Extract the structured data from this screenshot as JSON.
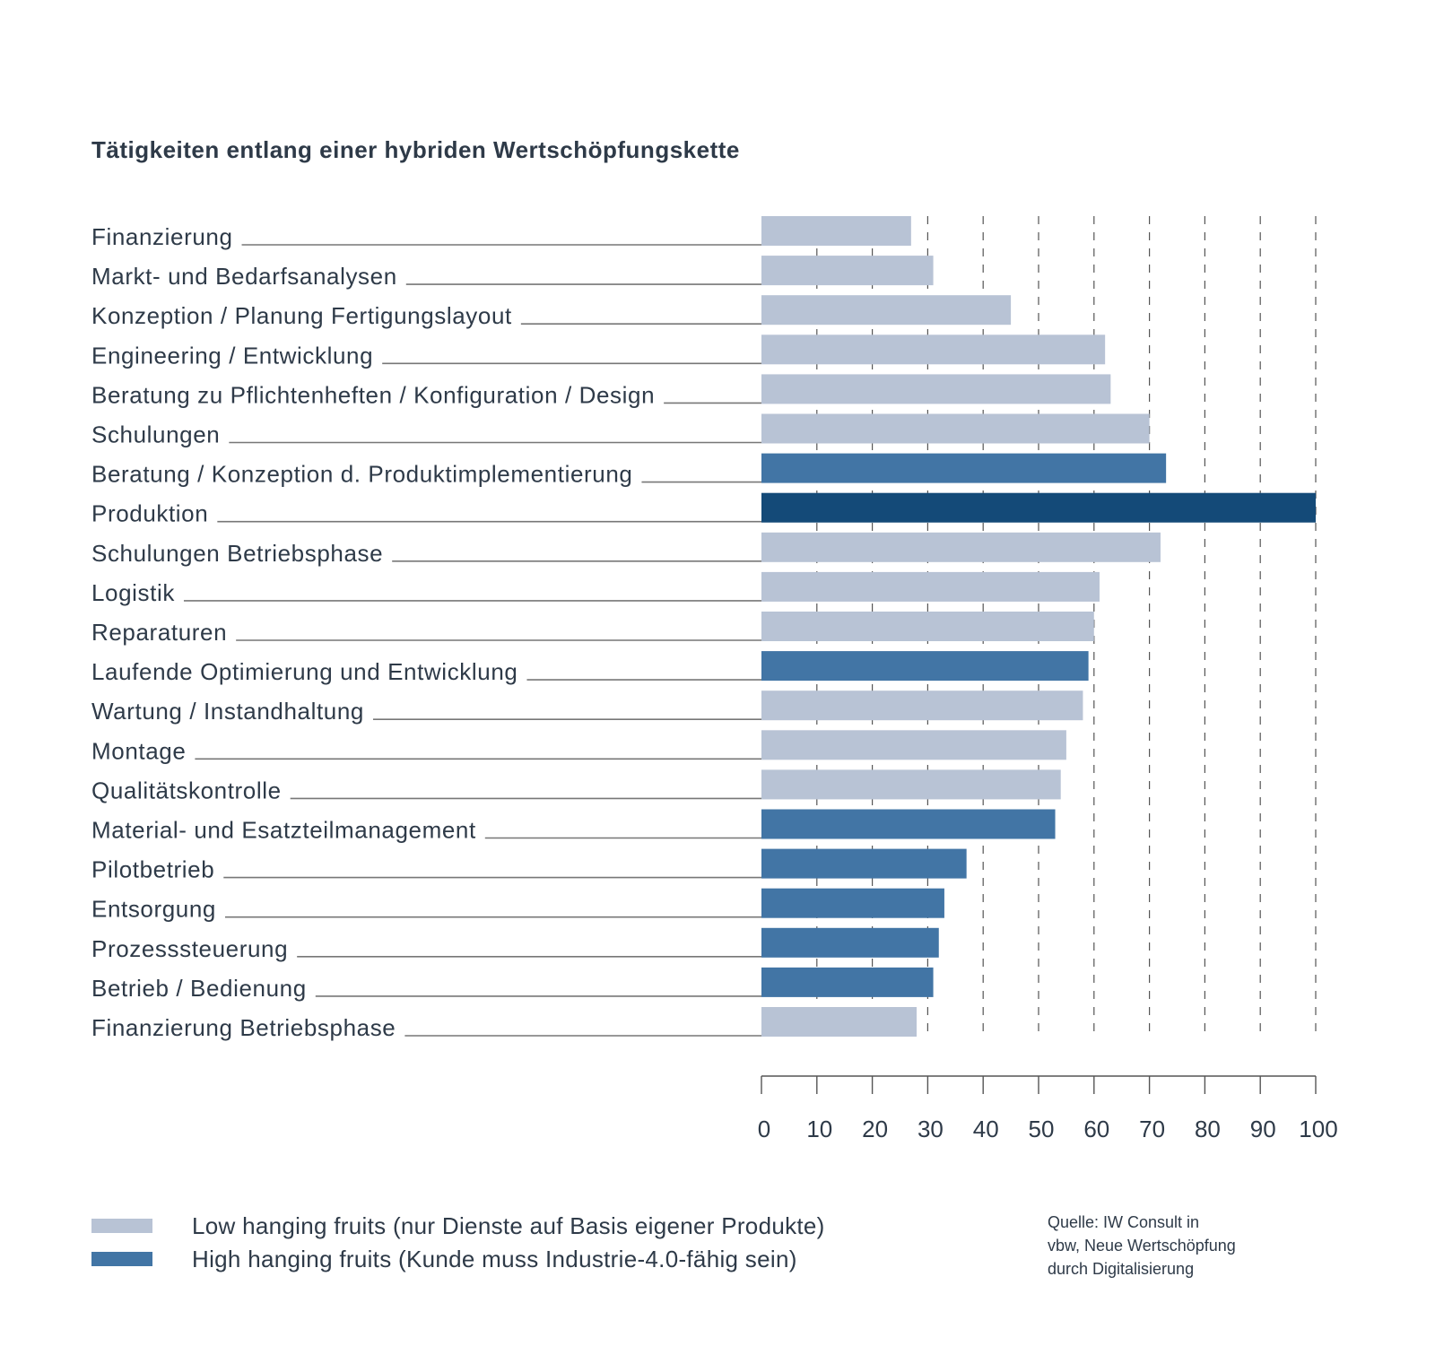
{
  "chart_data": {
    "type": "bar",
    "orientation": "horizontal",
    "title": "Tätigkeiten entlang einer hybriden Wertschöpfungskette",
    "xlabel": "",
    "ylabel": "",
    "xlim": [
      0,
      100
    ],
    "xticks": [
      0,
      10,
      20,
      30,
      40,
      50,
      60,
      70,
      80,
      90,
      100
    ],
    "grid": "vertical-dashed",
    "categories": [
      "Finanzierung",
      "Markt- und Bedarfsanalysen",
      "Konzeption / Planung Fertigungslayout",
      "Engineering / Entwicklung",
      "Beratung zu Pflichtenheften / Konfiguration / Design",
      "Schulungen",
      "Beratung / Konzeption d. Produktimplementierung",
      "Produktion",
      "Schulungen Betriebsphase",
      "Logistik",
      "Reparaturen",
      "Laufende Optimierung und Entwicklung",
      "Wartung / Instandhaltung",
      "Montage",
      "Qualitätskontrolle",
      "Material- und Esatzteilmanagement",
      "Pilotbetrieb",
      "Entsorgung",
      "Prozesssteuerung",
      "Betrieb / Bedienung",
      "Finanzierung Betriebsphase"
    ],
    "values": [
      27,
      31,
      45,
      62,
      63,
      70,
      73,
      100,
      72,
      61,
      60,
      59,
      58,
      55,
      54,
      53,
      37,
      33,
      32,
      31,
      28
    ],
    "groups": [
      "low",
      "low",
      "low",
      "low",
      "low",
      "low",
      "high",
      "base",
      "low",
      "low",
      "low",
      "high",
      "low",
      "low",
      "low",
      "high",
      "high",
      "high",
      "high",
      "high",
      "low"
    ],
    "colors": {
      "low": "#b8c3d5",
      "high": "#4275a5",
      "base": "#144a78"
    },
    "legend": [
      {
        "group": "low",
        "label": "Low hanging fruits (nur Dienste auf Basis eigener Produkte)"
      },
      {
        "group": "high",
        "label": "High hanging fruits (Kunde muss Industrie-4.0-fähig sein)"
      }
    ],
    "legend_position": "bottom-left",
    "source": [
      "Quelle: IW Consult in",
      "vbw, Neue Wertschöpfung",
      "durch Digitalisierung"
    ]
  }
}
